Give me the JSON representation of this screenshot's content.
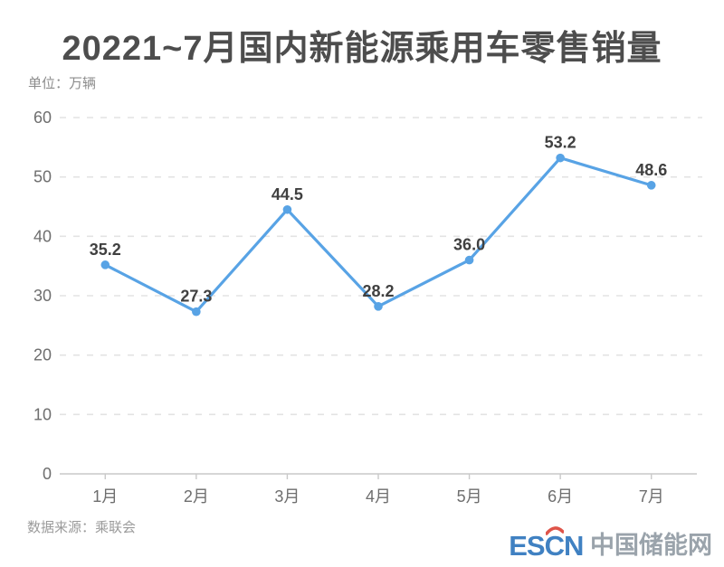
{
  "page": {
    "title": "20221~7月国内新能源乘用车零售销量",
    "unit_label": "单位：万辆",
    "source_label": "数据来源：乘联会",
    "logo": {
      "latin": "ESCN",
      "cjk": "中国储能网"
    }
  },
  "colors": {
    "title_text": "#4d4d4d",
    "line": "#58a3e5",
    "point": "#58a3e5",
    "value_label": "#404040",
    "axis_text": "#6e6e6e",
    "grid_line": "#e3e3e3",
    "axis_line": "#c9c9c9",
    "unit_text": "#8c8c8c",
    "source_text": "#9b9b9b",
    "logo_blue": "#4081c2",
    "logo_red": "#df5449",
    "logo_gray": "#9aa3ab"
  },
  "chart_data": {
    "type": "line",
    "title": "20221~7月国内新能源乘用车零售销量",
    "xlabel": "",
    "ylabel": "万辆",
    "categories": [
      "1月",
      "2月",
      "3月",
      "4月",
      "5月",
      "6月",
      "7月"
    ],
    "values": [
      35.2,
      27.3,
      44.5,
      28.2,
      36.0,
      53.2,
      48.6
    ],
    "value_label_decimals": 1,
    "ylim": [
      0,
      60
    ],
    "yticks": [
      0,
      10,
      20,
      30,
      40,
      50,
      60
    ],
    "grid": "horizontal-dashed",
    "legend_position": "none",
    "marker": "circle",
    "source": "乘联会"
  }
}
